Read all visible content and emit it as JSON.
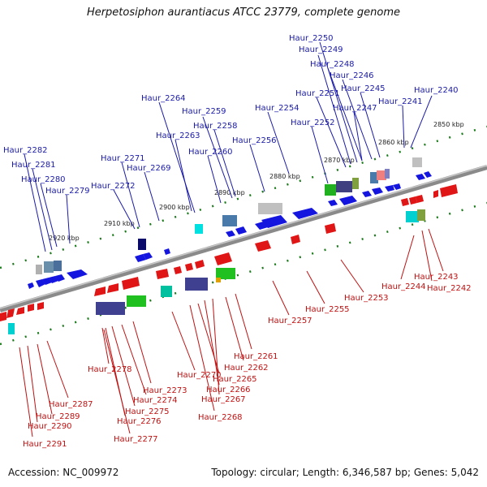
{
  "title": "Herpetosiphon aurantiacus ATCC 23779, complete genome",
  "footer": {
    "accession": "Accession: NC_009972",
    "topology": "Topology: circular; Length: 6,346,587 bp; Genes: 5,042"
  },
  "colors": {
    "forward_gene": "#1515e0",
    "reverse_gene": "#e01515",
    "forward_label": "#1a1aa8",
    "reverse_label": "#c01010",
    "backbone": "#8a8a8a",
    "tick_mark": "#1a7a1a"
  },
  "kbp_ticks": [
    "2850 kbp",
    "2860 kbp",
    "2870 kbp",
    "2880 kbp",
    "2890 kbp",
    "2900 kbp",
    "2910 kbp",
    "2920 kbp"
  ],
  "labels_top": [
    "Haur_2250",
    "Haur_2249",
    "Haur_2248",
    "Haur_2246",
    "Haur_2245",
    "Haur_2240",
    "Haur_2251",
    "Haur_2241",
    "Haur_2247",
    "Haur_2264",
    "Haur_2254",
    "Haur_2259",
    "Haur_2252",
    "Haur_2258",
    "Haur_2263",
    "Haur_2256",
    "Haur_2260",
    "Haur_2282",
    "Haur_2271",
    "Haur_2281",
    "Haur_2269",
    "Haur_2280",
    "Haur_2272",
    "Haur_2279"
  ],
  "labels_bottom": [
    "Haur_2243",
    "Haur_2244",
    "Haur_2242",
    "Haur_2253",
    "Haur_2255",
    "Haur_2257",
    "Haur_2261",
    "Haur_2262",
    "Haur_2278",
    "Haur_2270",
    "Haur_2265",
    "Haur_2273",
    "Haur_2266",
    "Haur_2274",
    "Haur_2267",
    "Haur_2287",
    "Haur_2275",
    "Haur_2289",
    "Haur_2276",
    "Haur_2268",
    "Haur_2290",
    "Haur_2277",
    "Haur_2291"
  ]
}
